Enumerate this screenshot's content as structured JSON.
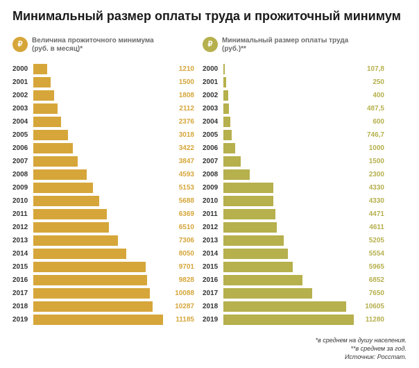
{
  "title": "Минимальный размер оплаты труда и прожиточный минимум",
  "title_fontsize": 18,
  "background_color": "#ffffff",
  "charts": [
    {
      "id": "left",
      "header": "Величина прожиточного минимума\n(руб. в месяц)*",
      "icon_bg": "#d6a63a",
      "icon_glyph": "₽",
      "bar_color": "#d6a63a",
      "value_color": "#d6a63a",
      "bar_area_width": 192,
      "value_col_width": 40,
      "max_value": 11500,
      "rows": [
        {
          "year": "2000",
          "value": 1210,
          "label": "1210"
        },
        {
          "year": "2001",
          "value": 1500,
          "label": "1500"
        },
        {
          "year": "2002",
          "value": 1808,
          "label": "1808"
        },
        {
          "year": "2003",
          "value": 2112,
          "label": "2112"
        },
        {
          "year": "2004",
          "value": 2376,
          "label": "2376"
        },
        {
          "year": "2005",
          "value": 3018,
          "label": "3018"
        },
        {
          "year": "2006",
          "value": 3422,
          "label": "3422"
        },
        {
          "year": "2007",
          "value": 3847,
          "label": "3847"
        },
        {
          "year": "2008",
          "value": 4593,
          "label": "4593"
        },
        {
          "year": "2009",
          "value": 5153,
          "label": "5153"
        },
        {
          "year": "2010",
          "value": 5688,
          "label": "5688"
        },
        {
          "year": "2011",
          "value": 6369,
          "label": "6369"
        },
        {
          "year": "2012",
          "value": 6510,
          "label": "6510"
        },
        {
          "year": "2013",
          "value": 7306,
          "label": "7306"
        },
        {
          "year": "2014",
          "value": 8050,
          "label": "8050"
        },
        {
          "year": "2015",
          "value": 9701,
          "label": "9701"
        },
        {
          "year": "2016",
          "value": 9828,
          "label": "9828"
        },
        {
          "year": "2017",
          "value": 10088,
          "label": "10088"
        },
        {
          "year": "2018",
          "value": 10287,
          "label": "10287"
        },
        {
          "year": "2019",
          "value": 11185,
          "label": "11185"
        }
      ]
    },
    {
      "id": "right",
      "header": "Минимальный размер оплаты труда\n(руб.)**",
      "icon_bg": "#b6b04d",
      "icon_glyph": "₽",
      "bar_color": "#b6b04d",
      "value_color": "#b6b04d",
      "bar_area_width": 192,
      "value_col_width": 40,
      "max_value": 11500,
      "rows": [
        {
          "year": "2000",
          "value": 107.8,
          "label": "107,8"
        },
        {
          "year": "2001",
          "value": 250,
          "label": "250"
        },
        {
          "year": "2002",
          "value": 400,
          "label": "400"
        },
        {
          "year": "2003",
          "value": 487.5,
          "label": "487,5"
        },
        {
          "year": "2004",
          "value": 600,
          "label": "600"
        },
        {
          "year": "2005",
          "value": 746.7,
          "label": "746,7"
        },
        {
          "year": "2006",
          "value": 1000,
          "label": "1000"
        },
        {
          "year": "2007",
          "value": 1500,
          "label": "1500"
        },
        {
          "year": "2008",
          "value": 2300,
          "label": "2300"
        },
        {
          "year": "2009",
          "value": 4330,
          "label": "4330"
        },
        {
          "year": "2010",
          "value": 4330,
          "label": "4330"
        },
        {
          "year": "2011",
          "value": 4471,
          "label": "4471"
        },
        {
          "year": "2012",
          "value": 4611,
          "label": "4611"
        },
        {
          "year": "2013",
          "value": 5205,
          "label": "5205"
        },
        {
          "year": "2014",
          "value": 5554,
          "label": "5554"
        },
        {
          "year": "2015",
          "value": 5965,
          "label": "5965"
        },
        {
          "year": "2016",
          "value": 6852,
          "label": "6852"
        },
        {
          "year": "2017",
          "value": 7650,
          "label": "7650"
        },
        {
          "year": "2018",
          "value": 10605,
          "label": "10605"
        },
        {
          "year": "2019",
          "value": 11280,
          "label": "11280"
        }
      ]
    }
  ],
  "footnotes": [
    "*в среднем на душу населения.",
    "**в среднем за год.",
    "Источник: Росстат."
  ]
}
